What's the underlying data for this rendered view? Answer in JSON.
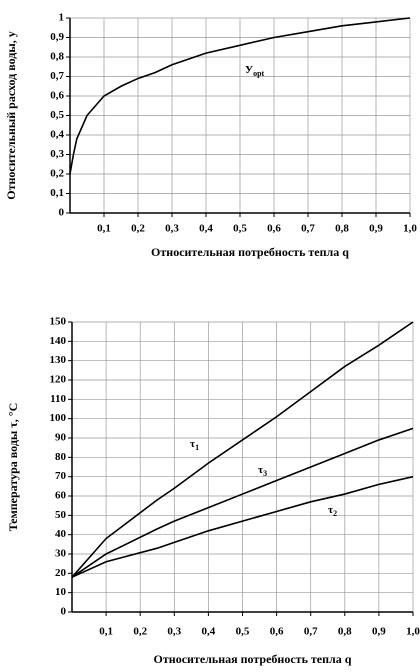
{
  "chart_data": [
    {
      "type": "line",
      "xlabel": "Относительная потребность тепла q",
      "ylabel": "Относительный расход воды, y",
      "annotations": [
        {
          "text": "У",
          "sub": "opt"
        }
      ],
      "x": [
        0,
        0.01,
        0.02,
        0.05,
        0.1,
        0.15,
        0.2,
        0.25,
        0.3,
        0.4,
        0.5,
        0.6,
        0.7,
        0.8,
        0.9,
        1.0
      ],
      "series": [
        {
          "name": "y",
          "color": "#000000",
          "values": [
            0.2,
            0.3,
            0.38,
            0.5,
            0.6,
            0.65,
            0.69,
            0.72,
            0.76,
            0.82,
            0.86,
            0.9,
            0.93,
            0.96,
            0.98,
            1.0
          ]
        }
      ],
      "xlim": [
        0,
        1
      ],
      "ylim": [
        0,
        1
      ],
      "xticks": [
        {
          "value": 0.1,
          "label": "0,1"
        },
        {
          "value": 0.2,
          "label": "0,2"
        },
        {
          "value": 0.3,
          "label": "0,3"
        },
        {
          "value": 0.4,
          "label": "0,4"
        },
        {
          "value": 0.5,
          "label": "0,5"
        },
        {
          "value": 0.6,
          "label": "0,6"
        },
        {
          "value": 0.7,
          "label": "0,7"
        },
        {
          "value": 0.8,
          "label": "0,8"
        },
        {
          "value": 0.9,
          "label": "0,9"
        },
        {
          "value": 1.0,
          "label": "1,0"
        }
      ],
      "yticks": [
        0,
        {
          "value": 0.1,
          "label": "0,1"
        },
        {
          "value": 0.2,
          "label": "0,2"
        },
        {
          "value": 0.3,
          "label": "0,3"
        },
        {
          "value": 0.4,
          "label": "0,4"
        },
        {
          "value": 0.5,
          "label": "0,5"
        },
        {
          "value": 0.6,
          "label": "0,6"
        },
        {
          "value": 0.7,
          "label": "0,7"
        },
        {
          "value": 0.8,
          "label": "0,8"
        },
        {
          "value": 0.9,
          "label": "0,9"
        },
        1
      ],
      "grid": true
    },
    {
      "type": "line",
      "xlabel": "Относительная потребность тепла q",
      "ylabel": "Температура воды τ, °C",
      "x": [
        0,
        0.1,
        0.25,
        0.3,
        0.4,
        0.5,
        0.6,
        0.7,
        0.8,
        0.9,
        1.0
      ],
      "series": [
        {
          "label": "τ",
          "sub": "1",
          "color": "#000000",
          "values": [
            18,
            38,
            58,
            64,
            77,
            89,
            101,
            114,
            127,
            138,
            150
          ]
        },
        {
          "label": "τ",
          "sub": "3",
          "color": "#000000",
          "values": [
            18,
            30,
            43,
            47,
            54,
            61,
            68,
            75,
            82,
            89,
            95
          ]
        },
        {
          "label": "τ",
          "sub": "2",
          "color": "#000000",
          "values": [
            18,
            26,
            33,
            36,
            42,
            47,
            52,
            57,
            61,
            66,
            70
          ]
        }
      ],
      "xlim": [
        0,
        1
      ],
      "ylim": [
        0,
        150
      ],
      "xticks": [
        {
          "value": 0.1,
          "label": "0,1"
        },
        {
          "value": 0.2,
          "label": "0,2"
        },
        {
          "value": 0.3,
          "label": "0,3"
        },
        {
          "value": 0.4,
          "label": "0,4"
        },
        {
          "value": 0.5,
          "label": "0,5"
        },
        {
          "value": 0.6,
          "label": "0,6"
        },
        {
          "value": 0.7,
          "label": "0,7"
        },
        {
          "value": 0.8,
          "label": "0,8"
        },
        {
          "value": 0.9,
          "label": "0,9"
        },
        {
          "value": 1.0,
          "label": "1,0"
        }
      ],
      "yticks": [
        0,
        10,
        20,
        30,
        40,
        50,
        60,
        70,
        80,
        90,
        100,
        110,
        120,
        130,
        140,
        150
      ],
      "grid": true
    }
  ]
}
